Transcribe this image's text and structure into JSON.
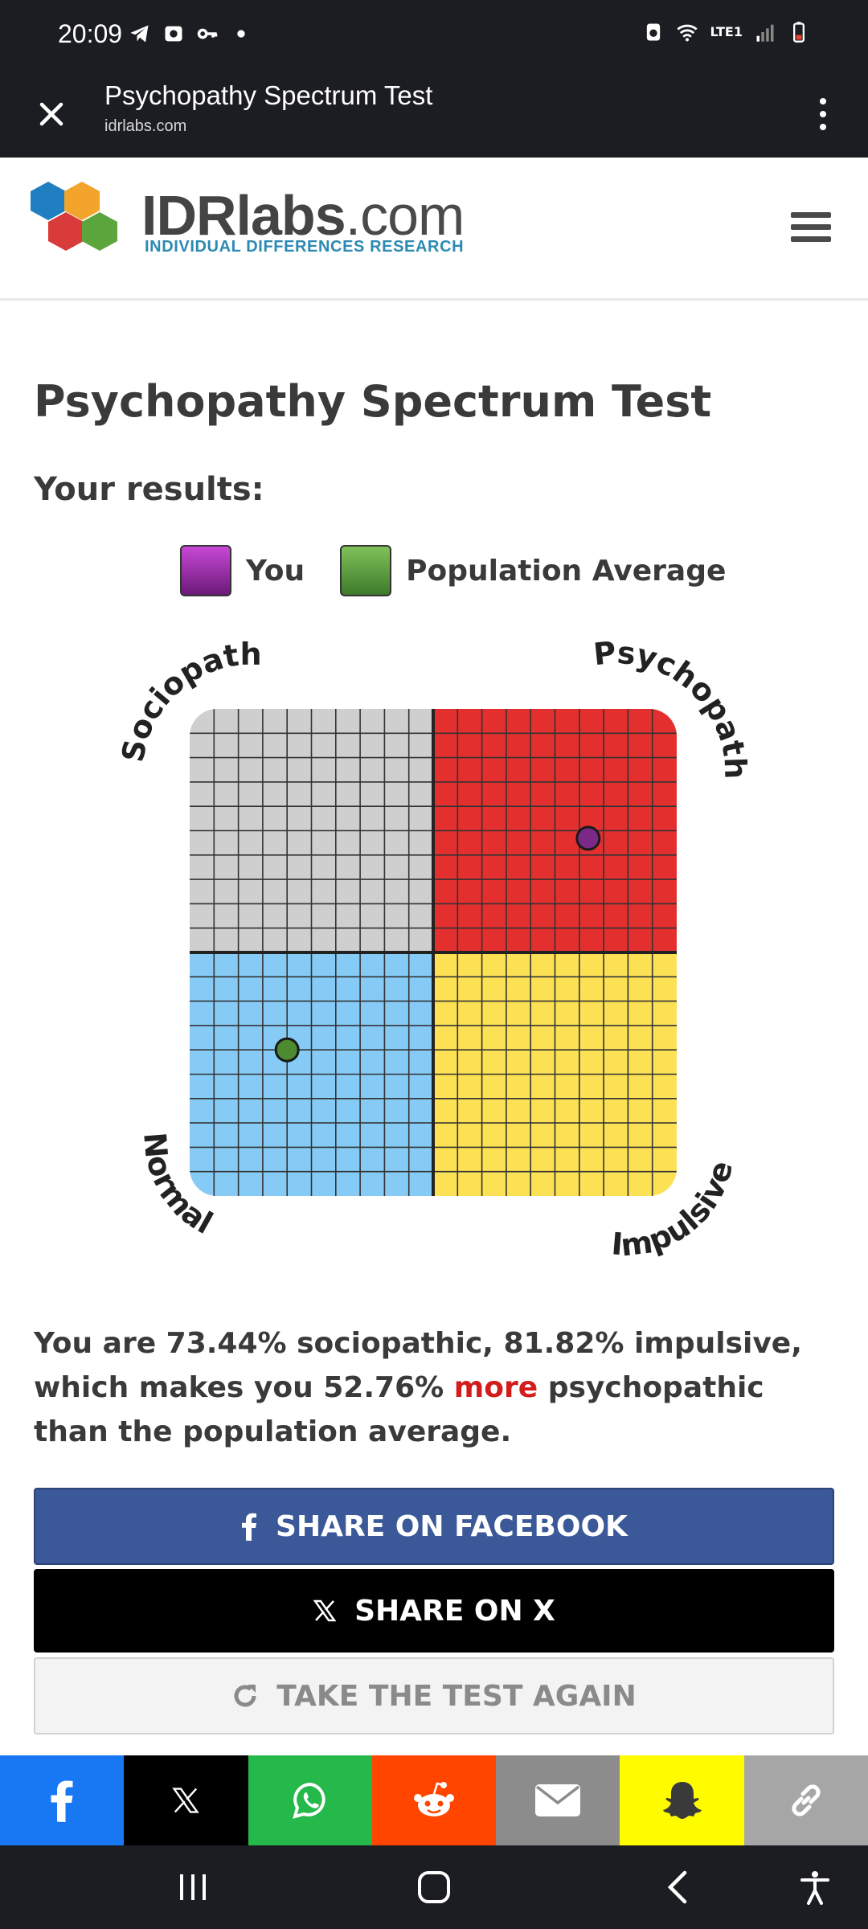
{
  "status_bar": {
    "time": "20:09",
    "network": "LTE1"
  },
  "browser": {
    "title": "Psychopathy Spectrum Test",
    "url": "idrlabs.com"
  },
  "site": {
    "brand_bold": "IDRlabs",
    "brand_light": ".com",
    "tagline": "INDIVIDUAL DIFFERENCES RESEARCH"
  },
  "page": {
    "title": "Psychopathy Spectrum Test",
    "results_label": "Your results:"
  },
  "legend": {
    "you": "You",
    "population": "Population Average",
    "you_color": "#8e2a9b",
    "population_color": "#5a9a3c"
  },
  "chart_data": {
    "type": "scatter",
    "corner_labels": {
      "top_left": "Sociopath",
      "top_right": "Psychopath",
      "bottom_left": "Normal",
      "bottom_right": "Impulsive"
    },
    "quadrant_colors": {
      "top_left": "#cfcfcf",
      "top_right": "#e3302f",
      "bottom_left": "#86cbf5",
      "bottom_right": "#fde154"
    },
    "grid": true,
    "xlim": [
      0,
      100
    ],
    "ylim": [
      0,
      100
    ],
    "points": [
      {
        "name": "You",
        "x": 81.82,
        "y": 73.44,
        "color": "#7a2a86"
      },
      {
        "name": "Population Average",
        "x": 20,
        "y": 30,
        "color": "#4e8a2f"
      }
    ]
  },
  "summary": {
    "part1": "You are 73.44% sociopathic, 81.82% impulsive, which makes you 52.76% ",
    "highlight": "more",
    "part2": " psychopathic than the population average."
  },
  "buttons": {
    "facebook": "SHARE ON FACEBOOK",
    "x": "SHARE ON X",
    "again": "TAKE THE TEST AGAIN"
  },
  "share_bar": [
    "facebook-icon",
    "x-icon",
    "whatsapp-icon",
    "reddit-icon",
    "email-icon",
    "snapchat-icon",
    "link-icon"
  ]
}
